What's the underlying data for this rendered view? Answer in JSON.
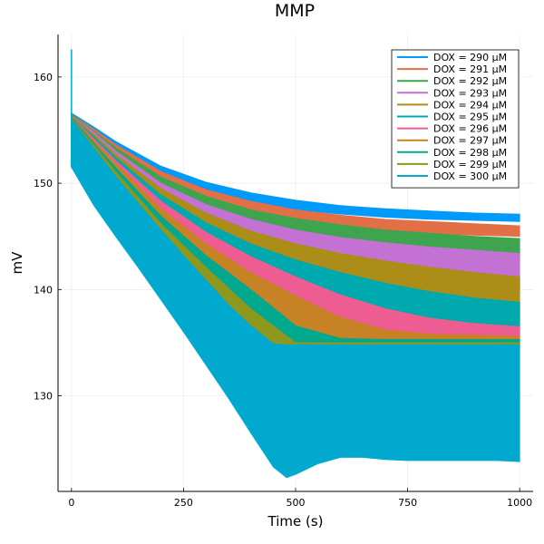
{
  "chart_data": {
    "type": "line",
    "title": "MMP",
    "xlabel": "Time (s)",
    "ylabel": "mV",
    "xlim": [
      -30,
      1030
    ],
    "ylim": [
      121,
      164
    ],
    "xticks": [
      0,
      250,
      500,
      750,
      1000
    ],
    "yticks": [
      130,
      140,
      150,
      160
    ],
    "grid": true,
    "legend_position": "top-right",
    "series": [
      {
        "name": "DOX = 290 μM",
        "color": "#009AFA",
        "x": [
          0,
          50,
          100,
          200,
          300,
          400,
          500,
          600,
          700,
          800,
          900,
          1000
        ],
        "upper": [
          156.6,
          155.3,
          153.9,
          151.6,
          150.1,
          149.1,
          148.4,
          147.9,
          147.6,
          147.4,
          147.2,
          147.1
        ],
        "lower": [
          152.8,
          152.0,
          151.4,
          150.0,
          148.9,
          148.1,
          147.5,
          147.1,
          146.8,
          146.6,
          146.5,
          146.4
        ]
      },
      {
        "name": "DOX = 291 μM",
        "color": "#E36F47",
        "x": [
          0,
          50,
          100,
          200,
          300,
          400,
          500,
          600,
          700,
          800,
          900,
          1000
        ],
        "upper": [
          156.5,
          155.1,
          153.6,
          151.1,
          149.4,
          148.3,
          147.5,
          147.0,
          146.6,
          146.4,
          146.2,
          146.0
        ],
        "lower": [
          152.7,
          151.8,
          151.0,
          149.4,
          148.1,
          147.1,
          146.4,
          145.9,
          145.5,
          145.3,
          145.1,
          145.0
        ]
      },
      {
        "name": "DOX = 292 μM",
        "color": "#3EA44E",
        "x": [
          0,
          50,
          100,
          200,
          300,
          400,
          500,
          600,
          700,
          800,
          900,
          1000
        ],
        "upper": [
          156.5,
          154.9,
          153.3,
          150.6,
          148.8,
          147.5,
          146.7,
          146.1,
          145.6,
          145.3,
          145.0,
          144.8
        ],
        "lower": [
          152.6,
          151.6,
          150.6,
          148.8,
          147.3,
          146.2,
          145.3,
          144.6,
          144.0,
          143.6,
          143.3,
          143.0
        ]
      },
      {
        "name": "DOX = 293 μM",
        "color": "#C371D2",
        "x": [
          0,
          50,
          100,
          200,
          300,
          400,
          500,
          600,
          700,
          800,
          900,
          1000
        ],
        "upper": [
          156.4,
          154.8,
          153.0,
          150.0,
          148.0,
          146.6,
          145.6,
          144.9,
          144.4,
          144.0,
          143.7,
          143.4
        ],
        "lower": [
          152.5,
          151.3,
          150.2,
          147.8,
          145.8,
          144.3,
          143.2,
          142.3,
          141.6,
          141.0,
          140.5,
          140.1
        ]
      },
      {
        "name": "DOX = 294 μM",
        "color": "#AC8D18",
        "x": [
          0,
          50,
          100,
          200,
          300,
          400,
          500,
          600,
          700,
          800,
          900,
          1000
        ],
        "upper": [
          156.4,
          154.6,
          152.7,
          149.5,
          147.2,
          145.5,
          144.3,
          143.4,
          142.7,
          142.1,
          141.6,
          141.2
        ],
        "lower": [
          152.4,
          151.1,
          149.8,
          147.0,
          144.5,
          142.4,
          140.9,
          139.7,
          138.8,
          138.0,
          137.4,
          137.0
        ]
      },
      {
        "name": "DOX = 295 μM",
        "color": "#00A9AD",
        "x": [
          0,
          50,
          100,
          200,
          300,
          400,
          500,
          600,
          700,
          800,
          900,
          1000
        ],
        "upper": [
          156.3,
          154.4,
          152.4,
          148.9,
          146.3,
          144.3,
          142.8,
          141.6,
          140.6,
          139.8,
          139.2,
          138.8
        ],
        "lower": [
          152.3,
          150.8,
          149.3,
          146.1,
          143.2,
          140.6,
          138.6,
          137.6,
          137.0,
          136.6,
          136.3,
          136.0
        ]
      },
      {
        "name": "DOX = 296 μM",
        "color": "#ED5D92",
        "x": [
          0,
          50,
          100,
          200,
          300,
          400,
          500,
          600,
          700,
          800,
          900,
          1000
        ],
        "upper": [
          156.3,
          154.2,
          152.1,
          148.3,
          145.4,
          143.1,
          141.2,
          139.5,
          138.2,
          137.3,
          136.8,
          136.5
        ],
        "lower": [
          152.2,
          150.5,
          148.8,
          145.1,
          141.7,
          138.6,
          136.4,
          135.9,
          135.7,
          135.6,
          135.6,
          135.5
        ]
      },
      {
        "name": "DOX = 297 μM",
        "color": "#C68225",
        "x": [
          0,
          50,
          100,
          200,
          300,
          400,
          500,
          600,
          700,
          800,
          900,
          1000
        ],
        "upper": [
          156.2,
          154.0,
          151.8,
          147.6,
          144.3,
          141.6,
          139.4,
          137.4,
          136.2,
          135.8,
          135.7,
          135.6
        ],
        "lower": [
          152.1,
          150.2,
          148.3,
          144.1,
          140.2,
          136.8,
          135.3,
          135.2,
          135.2,
          135.2,
          135.2,
          135.2
        ]
      },
      {
        "name": "DOX = 298 μM",
        "color": "#00A98D",
        "x": [
          0,
          50,
          100,
          200,
          300,
          400,
          500,
          600,
          700,
          800,
          900,
          1000
        ],
        "upper": [
          156.2,
          153.8,
          151.4,
          146.9,
          143.2,
          140.0,
          136.6,
          135.4,
          135.3,
          135.3,
          135.3,
          135.3
        ],
        "lower": [
          152.0,
          149.9,
          147.7,
          143.0,
          138.6,
          135.0,
          134.8,
          134.9,
          134.9,
          134.9,
          134.9,
          134.9
        ]
      },
      {
        "name": "DOX = 299 μM",
        "color": "#8E971E",
        "x": [
          0,
          50,
          100,
          200,
          300,
          400,
          500,
          600,
          700,
          800,
          900,
          1000
        ],
        "upper": [
          156.1,
          153.6,
          151.0,
          146.2,
          142.1,
          138.2,
          135.0,
          135.0,
          135.0,
          135.0,
          135.0,
          135.0
        ],
        "lower": [
          151.9,
          149.6,
          147.2,
          142.0,
          137.2,
          134.6,
          134.4,
          134.5,
          134.5,
          134.5,
          134.5,
          134.5
        ]
      },
      {
        "name": "DOX = 300 μM",
        "color": "#00A9CD",
        "x": [
          0,
          50,
          100,
          150,
          200,
          250,
          300,
          350,
          400,
          450,
          480,
          500,
          550,
          600,
          650,
          700,
          750,
          800,
          850,
          900,
          950,
          1000
        ],
        "upper": [
          156.0,
          153.3,
          150.6,
          148.1,
          145.6,
          143.2,
          140.9,
          138.6,
          136.6,
          134.9,
          134.8,
          134.8,
          134.8,
          134.8,
          134.8,
          134.8,
          134.8,
          134.8,
          134.8,
          134.8,
          134.8,
          134.8
        ],
        "lower": [
          151.5,
          147.9,
          144.9,
          142.0,
          139.0,
          136.0,
          132.9,
          129.8,
          126.5,
          123.3,
          122.3,
          122.6,
          123.6,
          124.2,
          124.2,
          124.0,
          123.9,
          123.9,
          123.9,
          123.9,
          123.9,
          123.8
        ]
      }
    ]
  }
}
